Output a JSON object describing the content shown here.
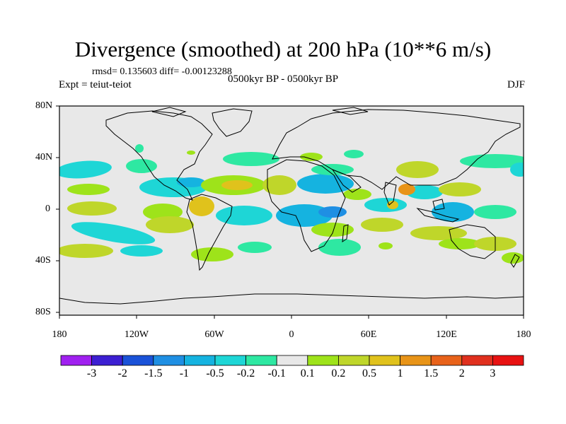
{
  "title": "Divergence (smoothed) at 200 hPa (10**6 m/s)",
  "stats": "rmsd= 0.135603 diff= -0.00123288",
  "expt": "Expt = teiut-teiot",
  "period": "0500kyr BP - 0500kyr BP",
  "season": "DJF",
  "x_ticks": [
    "180",
    "120W",
    "60W",
    "0",
    "60E",
    "120E",
    "180"
  ],
  "y_ticks": [
    "80N",
    "40N",
    "0",
    "40S",
    "80S"
  ],
  "colorbar": {
    "labels": [
      "-3",
      "-2",
      "-1.5",
      "-1",
      "-0.5",
      "-0.2",
      "-0.1",
      "0.1",
      "0.2",
      "0.5",
      "1",
      "1.5",
      "2",
      "3"
    ],
    "colors": [
      "#a020f0",
      "#3c1fd2",
      "#1a52d8",
      "#1f8fe3",
      "#15b3e0",
      "#1ed6d6",
      "#2ee8a2",
      "#e8e8e8",
      "#9ee31a",
      "#bfd62a",
      "#e0c21c",
      "#e89418",
      "#e8621a",
      "#e0301e",
      "#e81212"
    ]
  },
  "colors": {
    "background_field": "#e8e8e8",
    "pos_weak": "#9ee31a",
    "pos_mid": "#bfd62a",
    "pos_strong": "#e0c21c",
    "neg_weak": "#2ee8a2",
    "neg_mid": "#1ed6d6",
    "neg_strong": "#15b3e0"
  }
}
